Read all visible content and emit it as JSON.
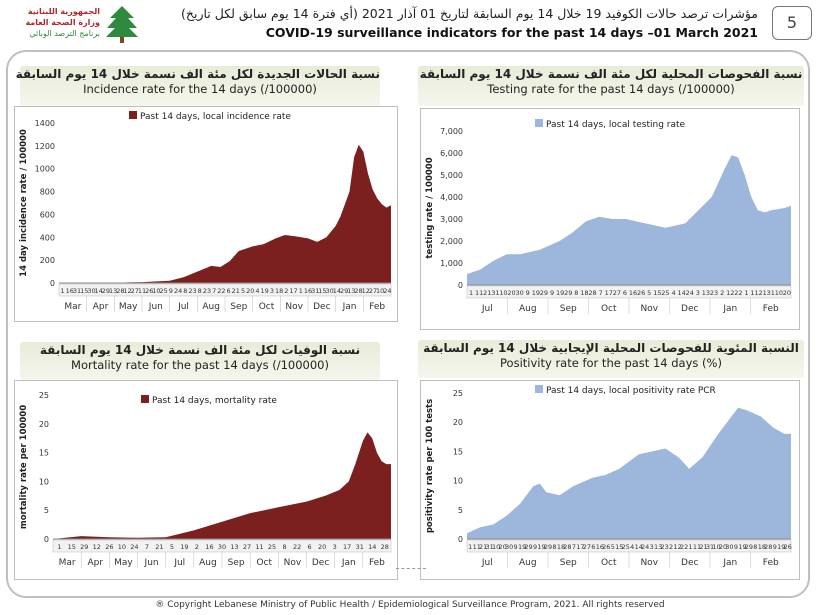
{
  "header": {
    "page_number": "5",
    "title_arabic": "مؤشرات ترصد حالات الكوفيد 19 خلال 14 يوم السابقة لتاريخ 01 آذار 2021 (أي فترة 14 يوم سابق لكل تاريخ)",
    "title_english": "COVID-19 surveillance indicators for the past 14 days –01 March 2021",
    "logo_lines": [
      "الجمهورية اللبنانية",
      "وزارة الصحة العامة",
      "برنامج الترصد الوبائي"
    ]
  },
  "footer": {
    "copyright": "® Copyright Lebanese Ministry of Public Health / Epidemiological Surveillance Program, 2021. All rights reserved"
  },
  "panels": {
    "incidence": {
      "title_ar": "نسبة الحالات الجديدة لكل مئة الف نسمة خلال 14 يوم السابقة",
      "title_en": "Incidence rate for the 14 days (/100000)"
    },
    "testing": {
      "title_ar": "نسبة الفحوصات المحلية لكل مئة الف نسمة خلال 14 يوم السابقة",
      "title_en": "Testing rate for the past 14 days (/100000)"
    },
    "mortality": {
      "title_ar": "نسبة الوفيات لكل مئة الف نسمة خلال 14 يوم السابقة",
      "title_en": "Mortality rate for the past 14 days (/100000)"
    },
    "positivity": {
      "title_ar": "النسبة المئوية للفحوصات المحلية الإيجابية خلال 14 يوم السابقة",
      "title_en": "Positivity rate for the past 14 days (%)"
    }
  },
  "chart_data": [
    {
      "id": "incidence",
      "type": "area",
      "legend": "Past 14 days, local incidence rate",
      "ylabel": "14 day incidence rate / 100000",
      "ylim": [
        0,
        1400
      ],
      "yticks": [
        0,
        200,
        400,
        600,
        800,
        1000,
        1200,
        1400
      ],
      "ytick_labels": [
        "0",
        "200",
        "400",
        "600",
        "800",
        "1000",
        "1200",
        "1400"
      ],
      "color": "#7b1f1f",
      "months": [
        "Mar",
        "Apr",
        "May",
        "Jun",
        "Jul",
        "Aug",
        "Sep",
        "Oct",
        "Nov",
        "Dec",
        "Jan",
        "Feb"
      ],
      "day_ticks": [
        "1",
        "16",
        "31",
        "15",
        "30",
        "14",
        "29",
        "13",
        "28",
        "12",
        "27",
        "11",
        "26",
        "10",
        "25",
        "9",
        "24",
        "8",
        "23",
        "8",
        "23",
        "7",
        "22",
        "6",
        "21",
        "5",
        "20",
        "4",
        "19",
        "3",
        "18",
        "2",
        "17",
        "1",
        "16",
        "31",
        "15",
        "30",
        "14",
        "29",
        "13",
        "28",
        "12",
        "27",
        "10",
        "24"
      ],
      "x": [
        0,
        30,
        60,
        90,
        120,
        135,
        150,
        165,
        175,
        185,
        195,
        210,
        222,
        235,
        245,
        255,
        270,
        280,
        290,
        300,
        305,
        315,
        320,
        325,
        330,
        335,
        340,
        345,
        350,
        355,
        360
      ],
      "y": [
        0,
        1,
        3,
        8,
        20,
        50,
        100,
        150,
        140,
        190,
        280,
        320,
        340,
        390,
        420,
        410,
        390,
        360,
        400,
        500,
        580,
        800,
        1100,
        1210,
        1150,
        960,
        820,
        740,
        690,
        660,
        680
      ]
    },
    {
      "id": "testing",
      "type": "area",
      "legend": "Past 14 days, local testing rate",
      "ylabel": "testing rate / 100000",
      "ylim": [
        0,
        7000
      ],
      "yticks": [
        0,
        1000,
        2000,
        3000,
        4000,
        5000,
        6000,
        7000
      ],
      "ytick_labels": [
        "0",
        "1,000",
        "2,000",
        "3,000",
        "4,000",
        "5,000",
        "6,000",
        "7,000"
      ],
      "color": "#9db7dc",
      "months": [
        "Jul",
        "Aug",
        "Sep",
        "Oct",
        "Nov",
        "Dec",
        "Jan",
        "Feb"
      ],
      "day_ticks": [
        "1",
        "11",
        "21",
        "31",
        "10",
        "20",
        "30",
        "9",
        "19",
        "29",
        "9",
        "19",
        "29",
        "8",
        "18",
        "28",
        "7",
        "17",
        "27",
        "6",
        "16",
        "26",
        "5",
        "15",
        "25",
        "4",
        "14",
        "24",
        "3",
        "13",
        "23",
        "2",
        "12",
        "22",
        "1",
        "11",
        "21",
        "31",
        "10",
        "20"
      ],
      "x": [
        0,
        10,
        20,
        30,
        40,
        55,
        70,
        80,
        90,
        100,
        110,
        120,
        135,
        150,
        165,
        175,
        185,
        195,
        200,
        205,
        210,
        215,
        220,
        225,
        230,
        240,
        245
      ],
      "y": [
        500,
        700,
        1100,
        1400,
        1400,
        1600,
        2000,
        2400,
        2900,
        3100,
        3000,
        3000,
        2800,
        2600,
        2800,
        3400,
        4000,
        5300,
        5900,
        5800,
        5000,
        4000,
        3400,
        3300,
        3400,
        3500,
        3600
      ]
    },
    {
      "id": "mortality",
      "type": "area",
      "legend": "Past 14 days, mortality rate",
      "ylabel": "mortality rate per 100000",
      "ylim": [
        0,
        25
      ],
      "yticks": [
        0,
        5,
        10,
        15,
        20,
        25
      ],
      "ytick_labels": [
        "0",
        "5",
        "10",
        "15",
        "20",
        "25"
      ],
      "color": "#7b1f1f",
      "months": [
        "Mar",
        "Apr",
        "May",
        "Jun",
        "Jul",
        "Aug",
        "Sep",
        "Oct",
        "Nov",
        "Dec",
        "Jan",
        "Feb"
      ],
      "day_ticks": [
        "1",
        "15",
        "29",
        "12",
        "26",
        "10",
        "24",
        "7",
        "21",
        "5",
        "19",
        "2",
        "16",
        "30",
        "13",
        "27",
        "11",
        "25",
        "8",
        "22",
        "6",
        "20",
        "3",
        "17",
        "31",
        "14",
        "28"
      ],
      "x": [
        0,
        30,
        60,
        90,
        120,
        150,
        180,
        210,
        240,
        270,
        290,
        305,
        315,
        322,
        330,
        335,
        340,
        345,
        350,
        355,
        360
      ],
      "y": [
        0,
        0.5,
        0.3,
        0.2,
        0.3,
        1.5,
        3,
        4.5,
        5.5,
        6.5,
        7.5,
        8.5,
        10,
        13,
        17,
        18.5,
        17.5,
        15,
        13.5,
        13,
        13
      ]
    },
    {
      "id": "positivity",
      "type": "area",
      "legend": "Past 14 days, local positivity rate PCR",
      "ylabel": "positivity rate per 100 tests",
      "ylim": [
        0,
        25
      ],
      "yticks": [
        0,
        5,
        10,
        15,
        20,
        25
      ],
      "ytick_labels": [
        "0",
        "5",
        "10",
        "15",
        "20",
        "25"
      ],
      "color": "#9db7dc",
      "months": [
        "Jul",
        "Aug",
        "Sep",
        "Oct",
        "Nov",
        "Dec",
        "Jan",
        "Feb"
      ],
      "day_ticks": [
        "1",
        "11",
        "21",
        "31",
        "10",
        "20",
        "30",
        "9",
        "19",
        "29",
        "9",
        "19",
        "29",
        "8",
        "18",
        "28",
        "7",
        "17",
        "27",
        "6",
        "16",
        "26",
        "5",
        "15",
        "25",
        "4",
        "14",
        "24",
        "3",
        "13",
        "23",
        "2",
        "12",
        "22",
        "1",
        "11",
        "21",
        "31",
        "10",
        "20",
        "30",
        "9",
        "19",
        "29",
        "8",
        "18",
        "28",
        "9",
        "19",
        "26"
      ],
      "x": [
        0,
        10,
        20,
        30,
        40,
        50,
        55,
        60,
        70,
        80,
        95,
        105,
        115,
        130,
        140,
        150,
        160,
        168,
        178,
        190,
        200,
        205,
        212,
        222,
        232,
        240,
        245
      ],
      "y": [
        1,
        2,
        2.5,
        4,
        6,
        9,
        9.5,
        8,
        7.5,
        9,
        10.5,
        11,
        12,
        14.5,
        15,
        15.5,
        14,
        12,
        14,
        18,
        21,
        22.5,
        22,
        21,
        19,
        18,
        18
      ]
    }
  ]
}
